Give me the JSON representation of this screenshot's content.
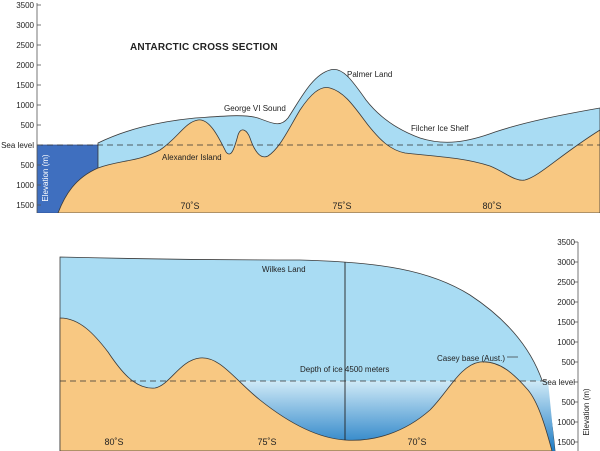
{
  "title": "ANTARCTIC CROSS SECTION",
  "colors": {
    "ice": "#a9dcf3",
    "ice_outline": "#3a3a3a",
    "rock": "#f8c882",
    "water_top": "#cfeaf7",
    "water_bottom": "#1f7cc4",
    "ocean_left": "#3f6fbf",
    "sea_line": "#333333"
  },
  "top_panel": {
    "elevation_ticks": [
      "3500",
      "3000",
      "2500",
      "2000",
      "1500",
      "1000",
      "500",
      "Sea level",
      "500",
      "1000",
      "1500"
    ],
    "axis_label": "Elevation (m)",
    "latitudes": [
      "70˚S",
      "75˚S",
      "80˚S"
    ],
    "labels": {
      "palmer_land": "Palmer Land",
      "george_vi_sound": "George VI Sound",
      "filcher_ice_shelf": "Filcher Ice Shelf",
      "alexander_island": "Alexander Island"
    }
  },
  "bottom_panel": {
    "elevation_ticks": [
      "3500",
      "3000",
      "2500",
      "2000",
      "1500",
      "1000",
      "500",
      "Sea level",
      "500",
      "1000",
      "1500"
    ],
    "axis_label": "Elevation (m)",
    "latitudes": [
      "80˚S",
      "75˚S",
      "70˚S"
    ],
    "labels": {
      "wilkes_land": "Wilkes Land",
      "depth_of_ice": "Depth of ice 4500 meters",
      "casey_base": "Casey base (Aust.)"
    }
  }
}
